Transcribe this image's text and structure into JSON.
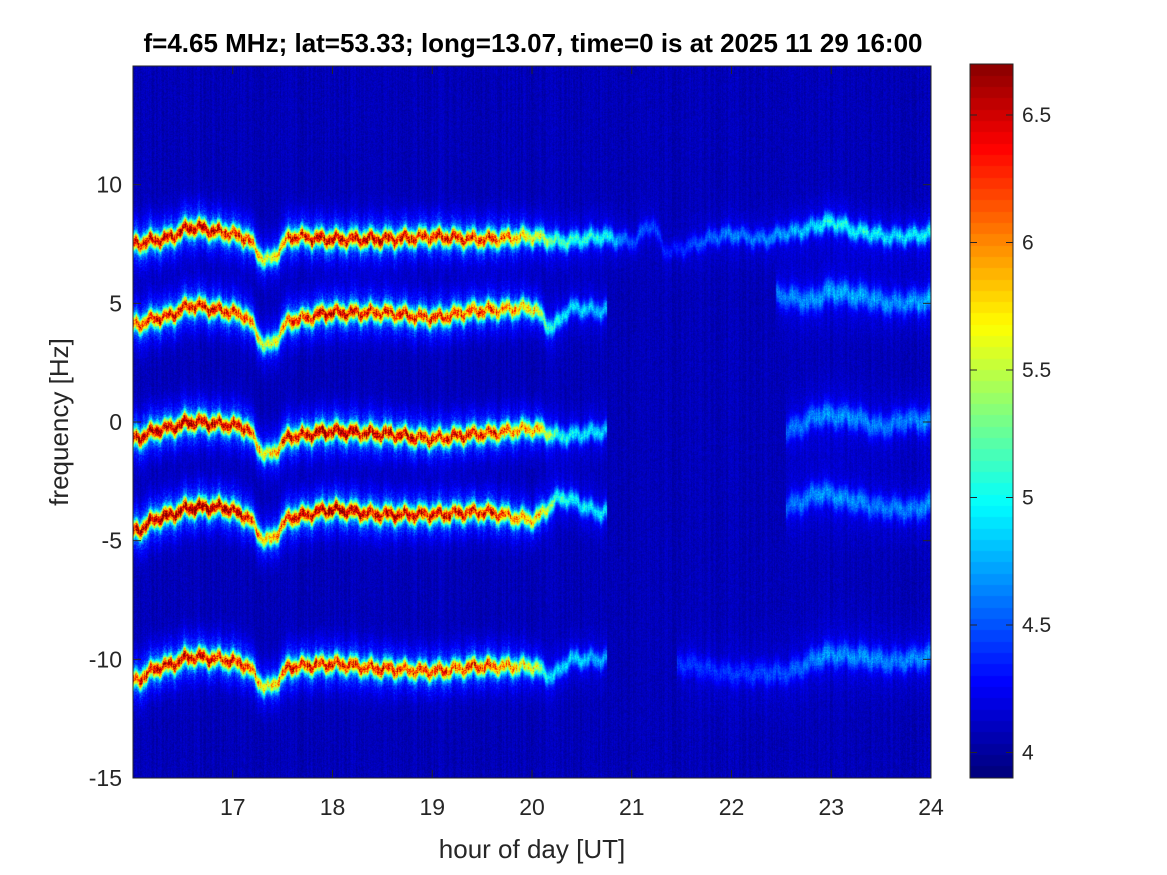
{
  "chart_data": {
    "type": "heatmap",
    "title": "f=4.65 MHz;  lat=53.33; long=13.07, time=0 is at 2025 11 29 16:00",
    "xlabel": "hour of day [UT]",
    "ylabel": "frequency [Hz]",
    "xlim": [
      16.0,
      24.0
    ],
    "ylim": [
      -15,
      15
    ],
    "x_ticks": [
      17,
      18,
      19,
      20,
      21,
      22,
      23,
      24
    ],
    "x_tick_labels": [
      "17",
      "18",
      "19",
      "20",
      "21",
      "22",
      "23",
      "24"
    ],
    "y_ticks": [
      -15,
      -10,
      -5,
      0,
      5,
      10
    ],
    "y_tick_labels": [
      "-15",
      "-10",
      "-5",
      "0",
      "5",
      "10"
    ],
    "colorbar": {
      "colormap": "jet",
      "clim": [
        3.9,
        6.7
      ],
      "ticks": [
        4,
        4.5,
        5,
        5.5,
        6,
        6.5
      ],
      "tick_labels": [
        "4",
        "4.5",
        "5",
        "5.5",
        "6",
        "6.5"
      ]
    },
    "background_color": "#00008f",
    "series": [
      {
        "trace": "upper",
        "x": [
          16.0,
          16.3,
          16.6,
          16.9,
          17.1,
          17.35,
          17.6,
          18.0,
          18.5,
          19.0,
          19.5,
          20.0,
          20.3,
          20.7,
          21.0,
          21.2,
          21.35,
          22.0,
          22.3,
          22.6,
          23.0,
          23.3,
          23.6,
          24.0
        ],
        "y": [
          7.5,
          7.7,
          8.2,
          8.0,
          7.8,
          6.8,
          7.8,
          7.7,
          7.7,
          7.8,
          7.7,
          7.8,
          7.6,
          7.8,
          7.6,
          8.3,
          7.2,
          7.9,
          7.7,
          8.0,
          8.4,
          8.0,
          7.8,
          7.9
        ],
        "peak": [
          0.85,
          0.9,
          0.95,
          0.9,
          0.85,
          0.55,
          0.85,
          0.9,
          0.9,
          0.85,
          0.85,
          0.6,
          0.4,
          0.35,
          0.15,
          0.15,
          0.1,
          0.2,
          0.2,
          0.25,
          0.35,
          0.35,
          0.3,
          0.35
        ]
      },
      {
        "trace": "second",
        "x": [
          16.0,
          16.3,
          16.6,
          16.9,
          17.1,
          17.35,
          17.6,
          18.0,
          18.5,
          19.0,
          19.5,
          20.0,
          20.2,
          20.4,
          20.7
        ],
        "y": [
          4.1,
          4.4,
          4.9,
          4.7,
          4.5,
          3.2,
          4.3,
          4.6,
          4.6,
          4.4,
          4.7,
          4.8,
          4.0,
          4.8,
          4.7
        ],
        "peak": [
          0.8,
          0.85,
          0.9,
          0.85,
          0.8,
          0.55,
          0.8,
          0.9,
          0.85,
          0.8,
          0.8,
          0.65,
          0.35,
          0.3,
          0.25
        ]
      },
      {
        "trace": "center",
        "x": [
          16.0,
          16.3,
          16.6,
          16.9,
          17.1,
          17.35,
          17.6,
          18.0,
          18.5,
          19.0,
          19.5,
          20.0,
          20.3,
          20.7
        ],
        "y": [
          -0.7,
          -0.3,
          0.0,
          -0.1,
          -0.2,
          -1.4,
          -0.6,
          -0.4,
          -0.5,
          -0.7,
          -0.5,
          -0.3,
          -0.6,
          -0.4
        ],
        "peak": [
          0.9,
          0.95,
          0.95,
          0.9,
          0.9,
          0.6,
          0.9,
          0.95,
          0.9,
          0.85,
          0.85,
          0.7,
          0.35,
          0.3
        ]
      },
      {
        "trace": "fourth",
        "x": [
          16.0,
          16.3,
          16.6,
          16.9,
          17.1,
          17.35,
          17.6,
          18.0,
          18.5,
          19.0,
          19.5,
          20.0,
          20.3,
          20.7
        ],
        "y": [
          -4.6,
          -4.0,
          -3.6,
          -3.6,
          -3.9,
          -5.0,
          -4.0,
          -3.7,
          -3.9,
          -3.9,
          -3.8,
          -4.1,
          -3.2,
          -3.8
        ],
        "peak": [
          0.9,
          0.95,
          1.0,
          0.95,
          0.9,
          0.65,
          0.9,
          0.95,
          0.9,
          0.9,
          0.85,
          0.7,
          0.35,
          0.3
        ]
      },
      {
        "trace": "lower",
        "x": [
          16.0,
          16.3,
          16.6,
          16.9,
          17.1,
          17.35,
          17.6,
          18.0,
          18.5,
          19.0,
          19.5,
          20.0,
          20.2,
          20.4,
          20.7
        ],
        "y": [
          -10.9,
          -10.3,
          -9.9,
          -10.0,
          -10.2,
          -11.2,
          -10.3,
          -10.2,
          -10.4,
          -10.5,
          -10.3,
          -10.3,
          -10.7,
          -10.0,
          -10.0
        ],
        "peak": [
          0.85,
          0.9,
          0.9,
          0.85,
          0.85,
          0.6,
          0.85,
          0.85,
          0.85,
          0.8,
          0.8,
          0.6,
          0.3,
          0.3,
          0.25
        ]
      }
    ],
    "faint_traces": [
      {
        "x": [
          22.5,
          22.8,
          23.0,
          23.3,
          23.6,
          24.0
        ],
        "y": [
          5.3,
          5.1,
          5.5,
          5.3,
          5.0,
          5.1
        ],
        "peak": [
          0.2,
          0.22,
          0.25,
          0.25,
          0.22,
          0.25
        ]
      },
      {
        "x": [
          22.6,
          22.9,
          23.2,
          23.5,
          23.8,
          24.0
        ],
        "y": [
          -0.3,
          0.3,
          0.2,
          -0.2,
          0.1,
          0.0
        ],
        "peak": [
          0.18,
          0.22,
          0.22,
          0.2,
          0.2,
          0.22
        ]
      },
      {
        "x": [
          22.6,
          22.9,
          23.2,
          23.5,
          23.8,
          24.0
        ],
        "y": [
          -3.5,
          -3.0,
          -3.3,
          -3.6,
          -3.7,
          -3.5
        ],
        "peak": [
          0.18,
          0.22,
          0.22,
          0.2,
          0.2,
          0.22
        ]
      },
      {
        "x": [
          21.5,
          22.0,
          22.5,
          23.0,
          23.3,
          23.6,
          24.0
        ],
        "y": [
          -10.2,
          -10.6,
          -10.6,
          -9.8,
          -9.9,
          -10.1,
          -9.9
        ],
        "peak": [
          0.12,
          0.12,
          0.15,
          0.22,
          0.22,
          0.2,
          0.22
        ]
      }
    ]
  }
}
